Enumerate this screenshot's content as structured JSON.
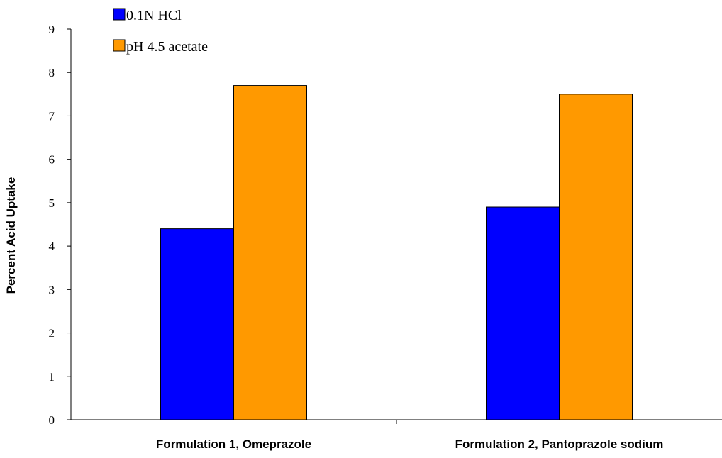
{
  "chart_data": {
    "type": "bar",
    "categories": [
      "Formulation 1, Omeprazole",
      "Formulation 2, Pantoprazole sodium"
    ],
    "series": [
      {
        "name": "0.1N HCl",
        "color": "#0000ff",
        "values": [
          4.4,
          4.9
        ]
      },
      {
        "name": "pH 4.5 acetate",
        "color": "#ff9900",
        "values": [
          7.7,
          7.5
        ]
      }
    ],
    "xlabel": "",
    "ylabel": "Percent Acid Uptake",
    "ylim": [
      0,
      9
    ],
    "yticks": [
      0,
      1,
      2,
      3,
      4,
      5,
      6,
      7,
      8,
      9
    ],
    "grid": false,
    "legend_position": "top-left"
  }
}
